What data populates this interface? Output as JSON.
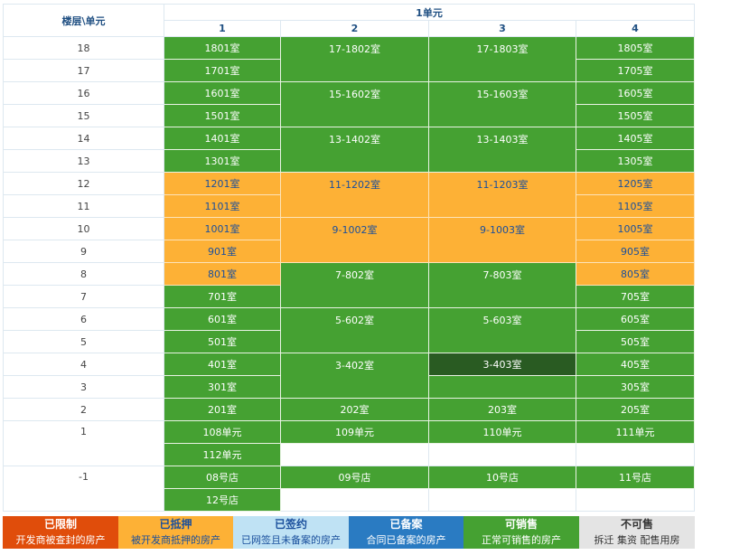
{
  "header": {
    "floor_unit_label": "楼层\\单元",
    "unit_label": "1单元",
    "columns": [
      "1",
      "2",
      "3",
      "4"
    ]
  },
  "floors": [
    "18",
    "17",
    "16",
    "15",
    "14",
    "13",
    "12",
    "11",
    "10",
    "9",
    "8",
    "7",
    "6",
    "5",
    "4",
    "3",
    "2",
    "1",
    "-1"
  ],
  "col1": [
    "1801室",
    "1701室",
    "1601室",
    "1501室",
    "1401室",
    "1301室",
    "1201室",
    "1101室",
    "1001室",
    "901室",
    "801室",
    "701室",
    "601室",
    "501室",
    "401室",
    "301室",
    "201室",
    "108单元",
    "112单元",
    "08号店",
    "12号店"
  ],
  "col2": [
    "17-1802室",
    "15-1602室",
    "13-1402室",
    "11-1202室",
    "9-1002室",
    "7-802室",
    "5-602室",
    "3-402室",
    "202室",
    "109单元",
    "09号店"
  ],
  "col3": [
    "17-1803室",
    "15-1603室",
    "13-1403室",
    "11-1203室",
    "9-1003室",
    "7-803室",
    "5-603室",
    "3-403室",
    "203室",
    "110单元",
    "10号店"
  ],
  "col4": [
    "1805室",
    "1705室",
    "1605室",
    "1505室",
    "1405室",
    "1305室",
    "1205室",
    "1105室",
    "1005室",
    "905室",
    "805室",
    "705室",
    "605室",
    "505室",
    "405室",
    "305室",
    "205室",
    "111单元",
    "11号店"
  ],
  "legend": [
    {
      "title": "已限制",
      "desc": "开发商被查封的房产",
      "bg": "#e04d0b",
      "fg": "#ffffff"
    },
    {
      "title": "已抵押",
      "desc": "被开发商抵押的房产",
      "bg": "#fdb136",
      "fg": "#1a4f9c"
    },
    {
      "title": "已签约",
      "desc": "已网签且未备案的房产",
      "bg": "#bfe2f4",
      "fg": "#1a4f9c"
    },
    {
      "title": "已备案",
      "desc": "合同已备案的房产",
      "bg": "#2a7bc2",
      "fg": "#ffffff"
    },
    {
      "title": "可销售",
      "desc": "正常可销售的房产",
      "bg": "#45a132",
      "fg": "#ffffff"
    },
    {
      "title": "不可售",
      "desc": "拆迁 集资 配售用房",
      "bg": "#e4e4e4",
      "fg": "#333333"
    }
  ],
  "colors": {
    "available": "#45a132",
    "mortgaged": "#fdb136",
    "selected": "#295b22",
    "header_text": "#1f4f82"
  }
}
